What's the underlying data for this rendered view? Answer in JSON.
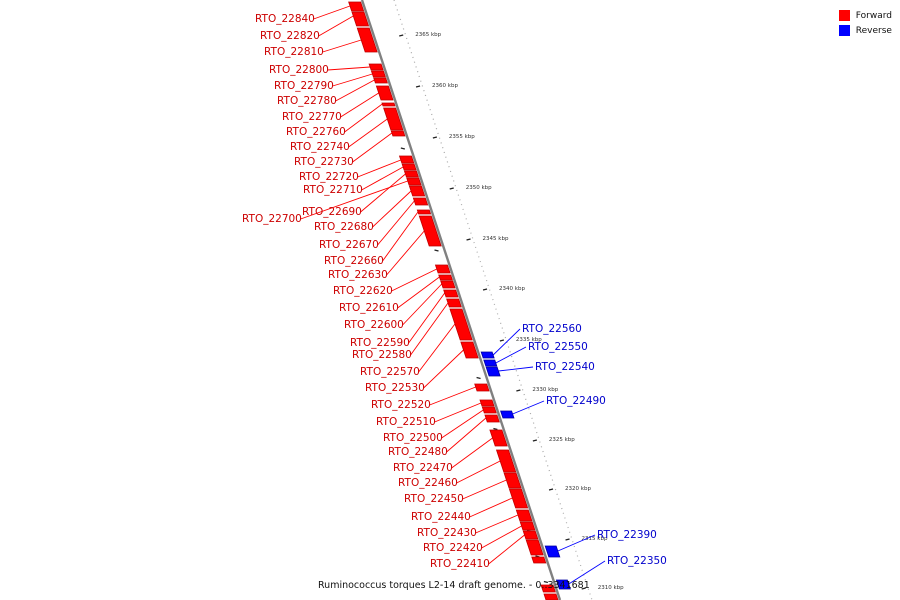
{
  "caption": "Ruminococcus torques L2-14 draft genome. - 0..3341681",
  "colors": {
    "forward": "#ff0000",
    "reverse": "#0000ff",
    "axis": "#808080",
    "forward_edge": "#c00000",
    "reverse_edge": "#0000a0"
  },
  "legend": [
    {
      "label": "Forward",
      "color": "#ff0000"
    },
    {
      "label": "Reverse",
      "color": "#0000ff"
    }
  ],
  "ticks": [
    "2365 kbp",
    "2360 kbp",
    "2355 kbp",
    "2350 kbp",
    "2345 kbp",
    "2340 kbp",
    "2335 kbp",
    "2330 kbp",
    "2325 kbp",
    "2320 kbp",
    "2315 kbp",
    "2310 kbp"
  ],
  "forward_genes": [
    "RTO_22840",
    "RTO_22820",
    "RTO_22810",
    "RTO_22800",
    "RTO_22790",
    "RTO_22780",
    "RTO_22770",
    "RTO_22760",
    "RTO_22740",
    "RTO_22730",
    "RTO_22720",
    "RTO_22710",
    "RTO_22690",
    "RTO_22700",
    "RTO_22680",
    "RTO_22670",
    "RTO_22660",
    "RTO_22630",
    "RTO_22620",
    "RTO_22610",
    "RTO_22600",
    "RTO_22590",
    "RTO_22580",
    "RTO_22570",
    "RTO_22530",
    "RTO_22520",
    "RTO_22510",
    "RTO_22500",
    "RTO_22480",
    "RTO_22470",
    "RTO_22460",
    "RTO_22450",
    "RTO_22440",
    "RTO_22430",
    "RTO_22420",
    "RTO_22410"
  ],
  "reverse_genes": [
    "RTO_22560",
    "RTO_22550",
    "RTO_22540",
    "RTO_22490",
    "RTO_22390",
    "RTO_22350"
  ]
}
